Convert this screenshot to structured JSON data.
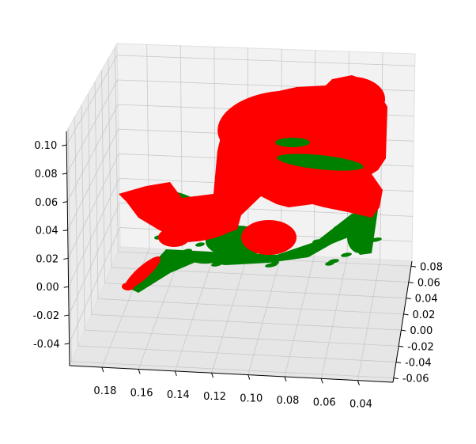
{
  "chart_data": {
    "type": "scatter",
    "projection": "3d",
    "title": "",
    "xlabel": "",
    "ylabel": "",
    "zlabel": "",
    "grid": true,
    "xlim": [
      0.03,
      0.19
    ],
    "ylim": [
      -0.06,
      0.09
    ],
    "zlim": [
      -0.045,
      0.105
    ],
    "x_ticks": [
      "0.18",
      "0.16",
      "0.14",
      "0.12",
      "0.10",
      "0.08",
      "0.06",
      "0.04"
    ],
    "y_ticks": [
      "-0.06",
      "-0.04",
      "-0.02",
      "0.00",
      "0.02",
      "0.04",
      "0.06",
      "0.08"
    ],
    "z_ticks": [
      "-0.04",
      "-0.02",
      "0.00",
      "0.02",
      "0.04",
      "0.06",
      "0.08",
      "0.10"
    ],
    "series": [
      {
        "color": "#008000",
        "marker": "dense point cloud, lower/background layer"
      },
      {
        "color": "#ff0000",
        "marker": "dense point cloud, upper/foreground layer"
      }
    ]
  }
}
